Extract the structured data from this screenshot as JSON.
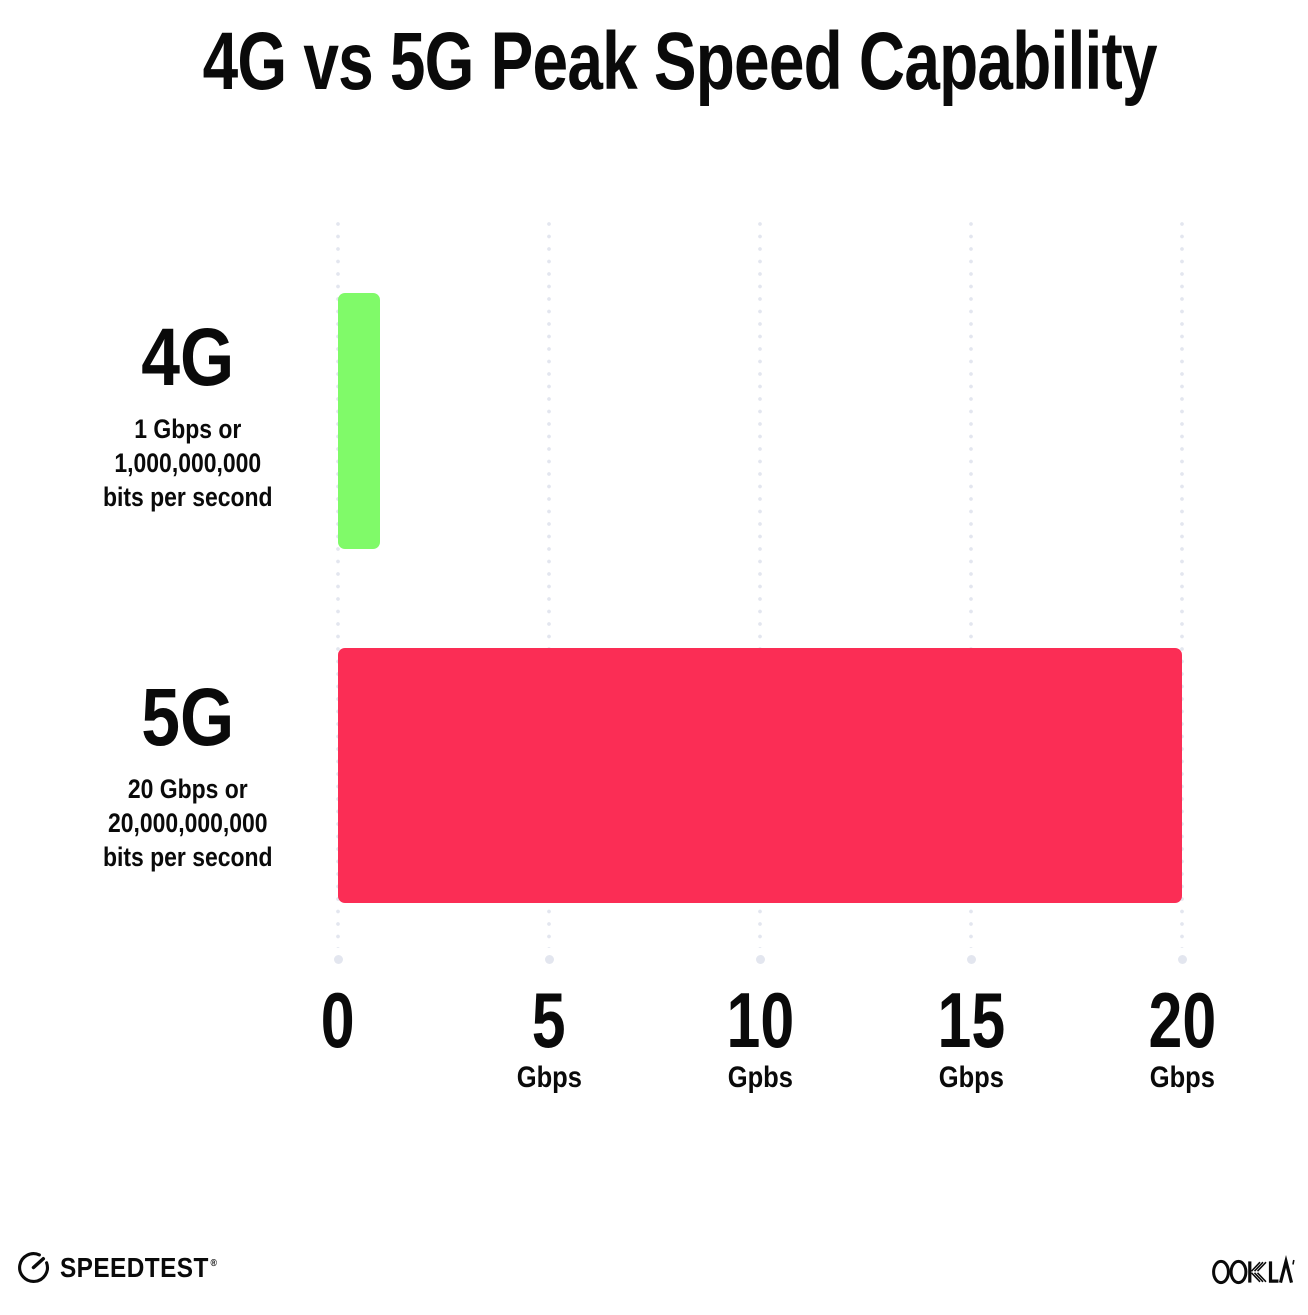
{
  "title": "4G vs 5G Peak Speed Capability",
  "chart_data": {
    "type": "bar",
    "orientation": "horizontal",
    "title": "4G vs 5G Peak Speed Capability",
    "categories": [
      "4G",
      "5G"
    ],
    "values": [
      1,
      20
    ],
    "category_sublabels": [
      [
        "1 Gbps or",
        "1,000,000,000",
        "bits per second"
      ],
      [
        "20 Gbps or",
        "20,000,000,000",
        "bits per second"
      ]
    ],
    "x_ticks": [
      {
        "label": "0",
        "unit": ""
      },
      {
        "label": "5",
        "unit": "Gbps"
      },
      {
        "label": "10",
        "unit": "Gpbs"
      },
      {
        "label": "15",
        "unit": "Gbps"
      },
      {
        "label": "20",
        "unit": "Gbps"
      }
    ],
    "xlim": [
      0,
      20
    ],
    "xlabel": "",
    "ylabel": "",
    "grid": "dotted-vertical",
    "legend": "none",
    "bar_colors": [
      "#80FA69",
      "#FB2D55"
    ]
  },
  "colors": {
    "background": "#FFFFFF",
    "text": "#0A0A0A",
    "grid_dot": "#E3E6EF",
    "bar_4g_green": "#80FA69",
    "bar_5g_pink": "#FB2D55"
  },
  "footer": {
    "speedtest_label": "SPEEDTEST",
    "speedtest_trademark": "®",
    "speedtest_icon": "gauge-icon",
    "ookla_label": "OOKLA",
    "ookla_trademark": "’"
  }
}
